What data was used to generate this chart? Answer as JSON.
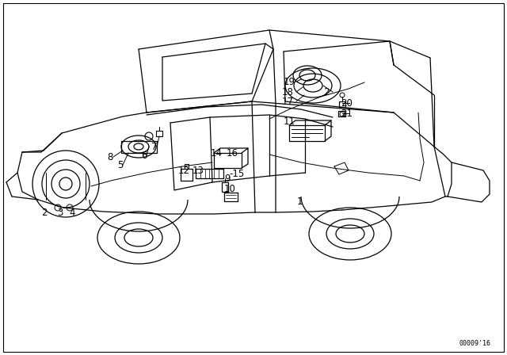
{
  "background_color": "#ffffff",
  "line_color": "#000000",
  "diagram_id": "00009'16",
  "labels": [
    {
      "text": "1",
      "xt": 375,
      "yt": 255
    },
    {
      "text": "2",
      "xt": 52,
      "yt": 268
    },
    {
      "text": "3",
      "xt": 72,
      "yt": 268
    },
    {
      "text": "4",
      "xt": 87,
      "yt": 268
    },
    {
      "text": "5",
      "xt": 148,
      "yt": 208
    },
    {
      "text": "6",
      "xt": 178,
      "yt": 196
    },
    {
      "text": "7",
      "xt": 191,
      "yt": 185
    },
    {
      "text": "8",
      "xt": 135,
      "yt": 198
    },
    {
      "text": "9",
      "xt": 283,
      "yt": 225
    },
    {
      "text": "10",
      "xt": 283,
      "yt": 238
    },
    {
      "text": "11",
      "xt": 358,
      "yt": 153
    },
    {
      "text": "12",
      "xt": 225,
      "yt": 215
    },
    {
      "text": "13",
      "xt": 243,
      "yt": 215
    },
    {
      "text": "14",
      "xt": 266,
      "yt": 193
    },
    {
      "text": "-15",
      "xt": 289,
      "yt": 219
    },
    {
      "text": "16",
      "xt": 286,
      "yt": 193
    },
    {
      "text": "17",
      "xt": 356,
      "yt": 128
    },
    {
      "text": "18",
      "xt": 356,
      "yt": 116
    },
    {
      "text": "19",
      "xt": 358,
      "yt": 103
    },
    {
      "text": "20",
      "xt": 430,
      "yt": 130
    },
    {
      "text": "21",
      "xt": 430,
      "yt": 143
    },
    {
      "text": "2",
      "xt": 408,
      "yt": 116
    }
  ]
}
